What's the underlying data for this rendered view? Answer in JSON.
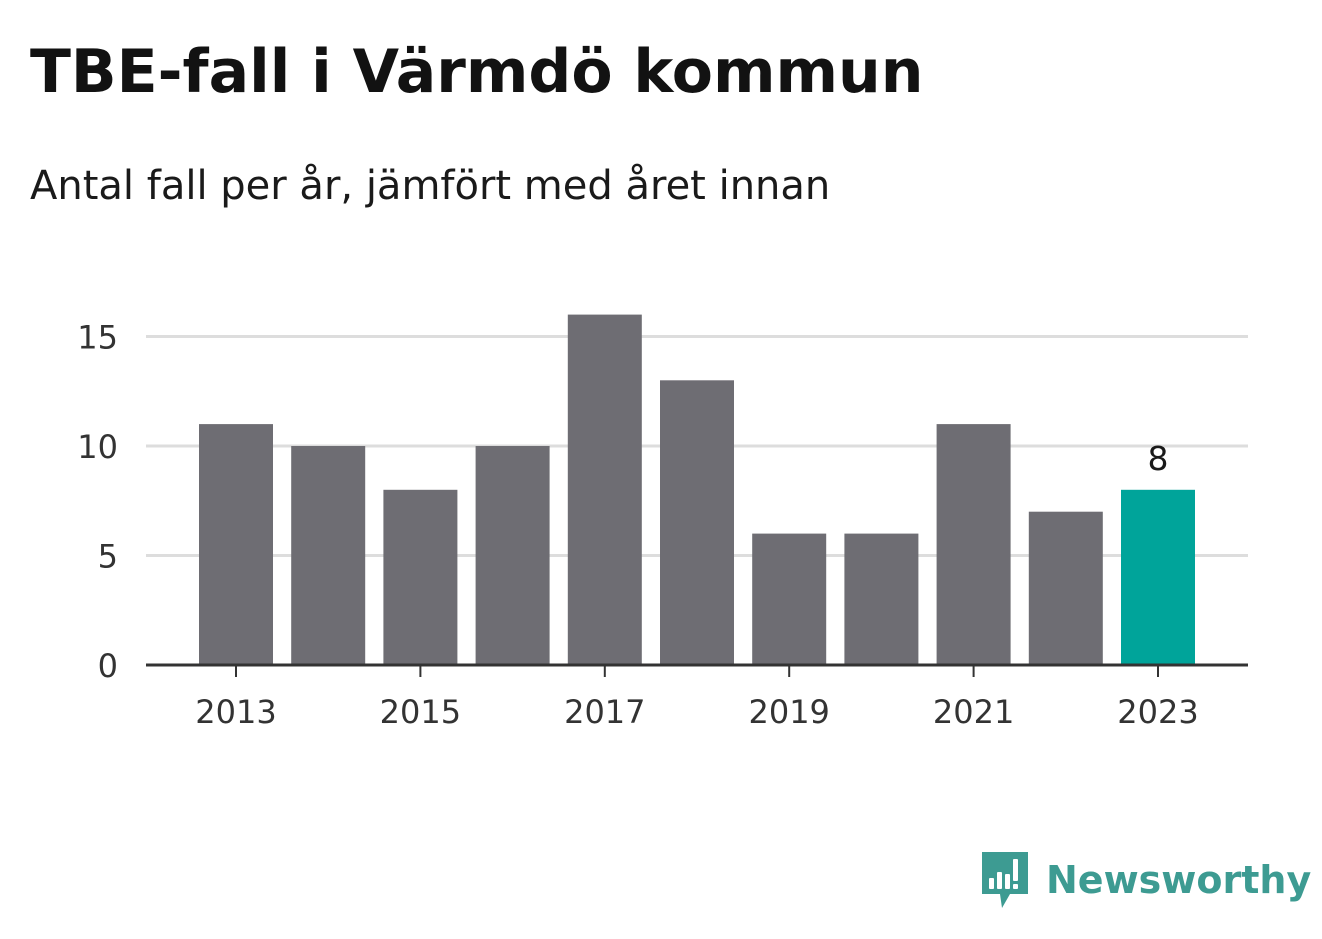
{
  "title": "TBE-fall i Värmdö kommun",
  "subtitle": "Antal fall per år, jämfört med året innan",
  "brand": {
    "name": "Newsworthy",
    "logo_icon": "newsworthy-logo-icon",
    "color": "#3d9b92"
  },
  "colors": {
    "bar": "#6e6d73",
    "highlight": "#00a49a",
    "grid": "#dddddd",
    "axis": "#333333"
  },
  "chart_data": {
    "type": "bar",
    "categories": [
      "2013",
      "2014",
      "2015",
      "2016",
      "2017",
      "2018",
      "2019",
      "2020",
      "2021",
      "2022",
      "2023"
    ],
    "values": [
      11,
      10,
      8,
      10,
      16,
      13,
      6,
      6,
      11,
      7,
      8
    ],
    "highlight_index": 10,
    "value_labels": [
      {
        "index": 10,
        "text": "8"
      }
    ],
    "x_tick_labels": [
      "2013",
      "2015",
      "2017",
      "2019",
      "2021",
      "2023"
    ],
    "y_ticks": [
      0,
      5,
      10,
      15
    ],
    "ylim": [
      0,
      16
    ],
    "grid": true,
    "legend": "none",
    "title": "TBE-fall i Värmdö kommun",
    "subtitle": "Antal fall per år, jämfört med året innan",
    "xlabel": "",
    "ylabel": ""
  }
}
